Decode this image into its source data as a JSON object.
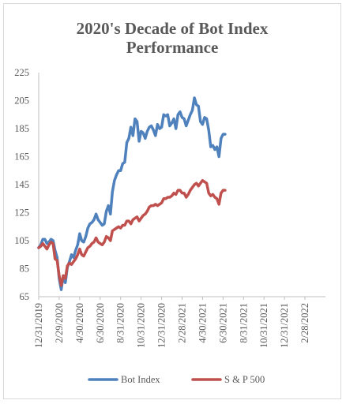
{
  "chart_data": {
    "type": "line",
    "title_line1": "2020's Decade of Bot Index",
    "title_line2": "Performance",
    "xlabel": "",
    "ylabel": "",
    "ylim": [
      65,
      225
    ],
    "yticks": [
      65,
      85,
      105,
      125,
      145,
      165,
      185,
      205,
      225
    ],
    "xticks": [
      "12/31/2019",
      "2/29/2020",
      "4/30/2020",
      "6/30/2020",
      "8/31/2020",
      "10/31/2020",
      "12/31/2020",
      "2/28/2021",
      "4/30/2021",
      "6/30/2021",
      "8/31/2021",
      "10/31/2021",
      "12/31/2021",
      "2/28/2022"
    ],
    "grid": false,
    "legend_position": "bottom",
    "series": [
      {
        "name": "Bot Index",
        "color": "#4f81bd",
        "points": [
          [
            0,
            100
          ],
          [
            0.1,
            102
          ],
          [
            0.2,
            106
          ],
          [
            0.3,
            106
          ],
          [
            0.4,
            103
          ],
          [
            0.5,
            104
          ],
          [
            0.6,
            106
          ],
          [
            0.7,
            105
          ],
          [
            0.8,
            98
          ],
          [
            0.9,
            93
          ],
          [
            1.0,
            78
          ],
          [
            1.1,
            70
          ],
          [
            1.2,
            80
          ],
          [
            1.3,
            75
          ],
          [
            1.4,
            86
          ],
          [
            1.5,
            90
          ],
          [
            1.6,
            95
          ],
          [
            1.7,
            93
          ],
          [
            1.8,
            98
          ],
          [
            1.9,
            102
          ],
          [
            2.0,
            110
          ],
          [
            2.1,
            105
          ],
          [
            2.2,
            104
          ],
          [
            2.3,
            108
          ],
          [
            2.4,
            114
          ],
          [
            2.5,
            117
          ],
          [
            2.6,
            118
          ],
          [
            2.7,
            120
          ],
          [
            2.8,
            124
          ],
          [
            2.9,
            120
          ],
          [
            3.0,
            118
          ],
          [
            3.1,
            116
          ],
          [
            3.2,
            117
          ],
          [
            3.3,
            126
          ],
          [
            3.4,
            130
          ],
          [
            3.5,
            124
          ],
          [
            3.6,
            140
          ],
          [
            3.7,
            148
          ],
          [
            3.8,
            152
          ],
          [
            3.9,
            155
          ],
          [
            4.0,
            155
          ],
          [
            4.1,
            160
          ],
          [
            4.2,
            161
          ],
          [
            4.3,
            175
          ],
          [
            4.4,
            178
          ],
          [
            4.5,
            186
          ],
          [
            4.6,
            180
          ],
          [
            4.7,
            192
          ],
          [
            4.8,
            190
          ],
          [
            4.9,
            176
          ],
          [
            5.0,
            183
          ],
          [
            5.1,
            182
          ],
          [
            5.2,
            178
          ],
          [
            5.3,
            183
          ],
          [
            5.4,
            186
          ],
          [
            5.5,
            187
          ],
          [
            5.6,
            184
          ],
          [
            5.7,
            180
          ],
          [
            5.8,
            188
          ],
          [
            5.9,
            185
          ],
          [
            6.0,
            186
          ],
          [
            6.1,
            195
          ],
          [
            6.2,
            194
          ],
          [
            6.3,
            195
          ],
          [
            6.4,
            187
          ],
          [
            6.5,
            189
          ],
          [
            6.6,
            192
          ],
          [
            6.7,
            185
          ],
          [
            6.8,
            195
          ],
          [
            6.9,
            197
          ],
          [
            7.0,
            193
          ],
          [
            7.1,
            192
          ],
          [
            7.2,
            187
          ],
          [
            7.3,
            191
          ],
          [
            7.4,
            195
          ],
          [
            7.5,
            198
          ],
          [
            7.6,
            207
          ],
          [
            7.7,
            202
          ],
          [
            7.8,
            201
          ],
          [
            7.9,
            190
          ],
          [
            8.0,
            188
          ],
          [
            8.1,
            193
          ],
          [
            8.2,
            192
          ],
          [
            8.3,
            184
          ],
          [
            8.4,
            172
          ],
          [
            8.5,
            173
          ],
          [
            8.6,
            170
          ],
          [
            8.7,
            172
          ],
          [
            8.8,
            165
          ],
          [
            8.9,
            178
          ],
          [
            9.0,
            181
          ],
          [
            9.1,
            181
          ]
        ]
      },
      {
        "name": "S & P 500",
        "color": "#c0504d",
        "points": [
          [
            0,
            100
          ],
          [
            0.1,
            101
          ],
          [
            0.2,
            103
          ],
          [
            0.3,
            101
          ],
          [
            0.4,
            99
          ],
          [
            0.5,
            102
          ],
          [
            0.6,
            104
          ],
          [
            0.7,
            103
          ],
          [
            0.8,
            92
          ],
          [
            0.9,
            91
          ],
          [
            1.0,
            80
          ],
          [
            1.1,
            73
          ],
          [
            1.2,
            80
          ],
          [
            1.3,
            78
          ],
          [
            1.4,
            87
          ],
          [
            1.5,
            89
          ],
          [
            1.6,
            88
          ],
          [
            1.7,
            90
          ],
          [
            1.8,
            92
          ],
          [
            1.9,
            95
          ],
          [
            2.0,
            99
          ],
          [
            2.1,
            95
          ],
          [
            2.2,
            94
          ],
          [
            2.3,
            97
          ],
          [
            2.4,
            100
          ],
          [
            2.5,
            101
          ],
          [
            2.6,
            103
          ],
          [
            2.7,
            104
          ],
          [
            2.8,
            107
          ],
          [
            2.9,
            104
          ],
          [
            3.0,
            103
          ],
          [
            3.1,
            102
          ],
          [
            3.2,
            104
          ],
          [
            3.3,
            108
          ],
          [
            3.4,
            107
          ],
          [
            3.5,
            105
          ],
          [
            3.6,
            112
          ],
          [
            3.7,
            113
          ],
          [
            3.8,
            114
          ],
          [
            3.9,
            115
          ],
          [
            4.0,
            114
          ],
          [
            4.1,
            116
          ],
          [
            4.2,
            116
          ],
          [
            4.3,
            119
          ],
          [
            4.4,
            119
          ],
          [
            4.5,
            117
          ],
          [
            4.6,
            120
          ],
          [
            4.7,
            121
          ],
          [
            4.8,
            122
          ],
          [
            4.9,
            119
          ],
          [
            5.0,
            121
          ],
          [
            5.1,
            123
          ],
          [
            5.2,
            124
          ],
          [
            5.3,
            126
          ],
          [
            5.4,
            129
          ],
          [
            5.5,
            130
          ],
          [
            5.6,
            130
          ],
          [
            5.7,
            131
          ],
          [
            5.8,
            130
          ],
          [
            5.9,
            131
          ],
          [
            6.0,
            132
          ],
          [
            6.1,
            135
          ],
          [
            6.2,
            135
          ],
          [
            6.3,
            136
          ],
          [
            6.4,
            136
          ],
          [
            6.5,
            137
          ],
          [
            6.6,
            139
          ],
          [
            6.7,
            138
          ],
          [
            6.8,
            141
          ],
          [
            6.9,
            141
          ],
          [
            7.0,
            139
          ],
          [
            7.1,
            139
          ],
          [
            7.2,
            136
          ],
          [
            7.3,
            138
          ],
          [
            7.4,
            141
          ],
          [
            7.5,
            143
          ],
          [
            7.6,
            145
          ],
          [
            7.7,
            146
          ],
          [
            7.8,
            144
          ],
          [
            7.9,
            146
          ],
          [
            8.0,
            148
          ],
          [
            8.1,
            147
          ],
          [
            8.2,
            146
          ],
          [
            8.3,
            139
          ],
          [
            8.4,
            137
          ],
          [
            8.5,
            138
          ],
          [
            8.6,
            136
          ],
          [
            8.7,
            135
          ],
          [
            8.8,
            131
          ],
          [
            8.9,
            139
          ],
          [
            9.0,
            141
          ],
          [
            9.1,
            141
          ]
        ]
      }
    ]
  }
}
